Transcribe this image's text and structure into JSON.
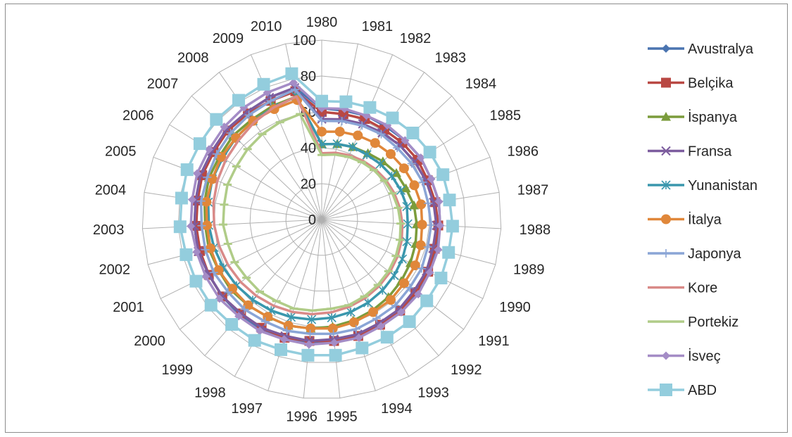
{
  "chart_data": {
    "type": "radar",
    "title": "",
    "categories": [
      "1980",
      "1981",
      "1982",
      "1983",
      "1984",
      "1985",
      "1986",
      "1987",
      "1988",
      "1989",
      "1990",
      "1991",
      "1992",
      "1993",
      "1994",
      "1995",
      "1996",
      "1997",
      "1998",
      "1999",
      "2000",
      "2001",
      "2002",
      "2003",
      "2004",
      "2005",
      "2006",
      "2007",
      "2008",
      "2009",
      "2010"
    ],
    "r_ticks": [
      "0",
      "20",
      "40",
      "60",
      "80",
      "100"
    ],
    "r_range": [
      0,
      100
    ],
    "grid": true,
    "legend_position": "right",
    "series": [
      {
        "name": "Avustralya",
        "color": "#4a74b0",
        "marker": "diamond",
        "values": [
          62,
          62,
          63,
          63,
          64,
          65,
          65,
          66,
          66,
          66,
          67,
          67,
          68,
          68,
          68,
          68,
          69,
          69,
          70,
          70,
          70,
          70,
          71,
          71,
          71,
          72,
          72,
          73,
          73,
          74,
          75
        ]
      },
      {
        "name": "Belçika",
        "color": "#b94843",
        "marker": "square",
        "values": [
          60,
          60,
          61,
          61,
          62,
          63,
          63,
          64,
          65,
          65,
          66,
          66,
          67,
          67,
          68,
          68,
          68,
          69,
          69,
          69,
          70,
          70,
          70,
          70,
          70,
          71,
          71,
          72,
          72,
          72,
          73
        ]
      },
      {
        "name": "İspanya",
        "color": "#7b9c3c",
        "marker": "triangle",
        "values": [
          42,
          43,
          44,
          45,
          47,
          49,
          50,
          52,
          53,
          54,
          55,
          56,
          57,
          58,
          59,
          60,
          61,
          62,
          62,
          63,
          64,
          64,
          65,
          65,
          66,
          67,
          67,
          68,
          68,
          69,
          70
        ]
      },
      {
        "name": "Fransa",
        "color": "#7c5c9e",
        "marker": "x",
        "values": [
          56,
          57,
          58,
          59,
          60,
          61,
          62,
          63,
          64,
          64,
          65,
          65,
          66,
          66,
          67,
          67,
          68,
          68,
          69,
          69,
          70,
          70,
          71,
          71,
          71,
          72,
          72,
          73,
          73,
          74,
          75
        ]
      },
      {
        "name": "Yunanistan",
        "color": "#3a97ad",
        "marker": "asterisk",
        "values": [
          42,
          43,
          44,
          44,
          45,
          46,
          47,
          48,
          48,
          49,
          50,
          51,
          52,
          53,
          54,
          55,
          56,
          57,
          58,
          59,
          60,
          61,
          62,
          63,
          64,
          65,
          65,
          66,
          67,
          68,
          70
        ]
      },
      {
        "name": "İtalya",
        "color": "#e0873a",
        "marker": "circle",
        "values": [
          49,
          50,
          51,
          52,
          53,
          54,
          55,
          56,
          56,
          57,
          58,
          58,
          59,
          59,
          60,
          61,
          61,
          62,
          62,
          63,
          63,
          64,
          64,
          64,
          65,
          65,
          66,
          66,
          67,
          67,
          68
        ]
      },
      {
        "name": "Japonya",
        "color": "#8aa5d6",
        "marker": "plus",
        "values": [
          55,
          56,
          57,
          58,
          58,
          59,
          60,
          60,
          61,
          61,
          62,
          62,
          63,
          63,
          64,
          64,
          64,
          65,
          65,
          66,
          66,
          67,
          67,
          67,
          68,
          68,
          69,
          70,
          71,
          72,
          74
        ]
      },
      {
        "name": "Kore",
        "color": "#d98a88",
        "marker": "none",
        "values": [
          37,
          38,
          39,
          40,
          41,
          42,
          43,
          44,
          45,
          46,
          47,
          48,
          49,
          50,
          51,
          52,
          53,
          54,
          55,
          56,
          57,
          58,
          59,
          60,
          61,
          62,
          63,
          64,
          66,
          68,
          70
        ]
      },
      {
        "name": "Portekiz",
        "color": "#b0cc88",
        "marker": "dash",
        "values": [
          36,
          37,
          38,
          39,
          40,
          41,
          42,
          43,
          44,
          45,
          46,
          47,
          48,
          49,
          50,
          50,
          51,
          52,
          52,
          53,
          53,
          54,
          54,
          55,
          55,
          56,
          56,
          57,
          58,
          59,
          60
        ]
      },
      {
        "name": "İsveç",
        "color": "#a48cc6",
        "marker": "diamond",
        "values": [
          62,
          63,
          63,
          64,
          64,
          65,
          65,
          66,
          66,
          67,
          67,
          68,
          68,
          68,
          69,
          69,
          70,
          70,
          71,
          71,
          72,
          72,
          72,
          73,
          73,
          74,
          74,
          75,
          76,
          77,
          78
        ]
      },
      {
        "name": "ABD",
        "color": "#93cddd",
        "marker": "square",
        "values": [
          66,
          67,
          68,
          69,
          70,
          71,
          72,
          72,
          73,
          73,
          74,
          74,
          75,
          75,
          75,
          76,
          76,
          76,
          77,
          77,
          78,
          78,
          78,
          79,
          79,
          80,
          80,
          81,
          81,
          82,
          83
        ]
      }
    ]
  }
}
